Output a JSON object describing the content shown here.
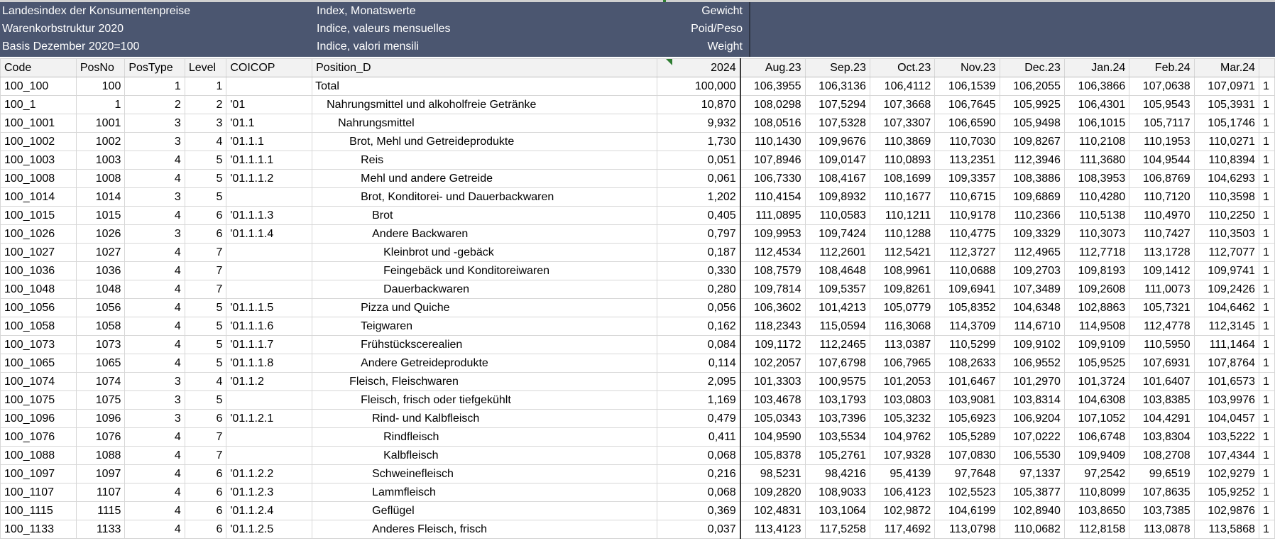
{
  "header": {
    "left": [
      "Landesindex der Konsumentenpreise",
      "Warenkorbstruktur 2020",
      "Basis Dezember 2020=100"
    ],
    "middle": [
      "Index, Monatswerte",
      "Indice, valeurs mensuelles",
      "Indice, valori mensili"
    ],
    "weight": [
      "Gewicht",
      "Poid/Peso",
      "Weight"
    ]
  },
  "columns": {
    "code": "Code",
    "posno": "PosNo",
    "postype": "PosType",
    "level": "Level",
    "coicop": "COICOP",
    "position": "Position_D",
    "weight_year": "2024",
    "months": [
      "Aug.23",
      "Sep.23",
      "Oct.23",
      "Nov.23",
      "Dec.23",
      "Jan.24",
      "Feb.24",
      "Mar.24"
    ]
  },
  "rows": [
    {
      "code": "100_100",
      "posno": "100",
      "postype": "1",
      "level": "1",
      "coicop": "",
      "position": "Total",
      "weight": "100,000",
      "values": [
        "106,3955",
        "106,3136",
        "106,4112",
        "106,1539",
        "106,2055",
        "106,3866",
        "107,0638",
        "107,0971"
      ],
      "trail": "1"
    },
    {
      "code": "100_1",
      "posno": "1",
      "postype": "2",
      "level": "2",
      "coicop": "'01",
      "position": "Nahrungsmittel und alkoholfreie Getränke",
      "weight": "10,870",
      "values": [
        "108,0298",
        "107,5294",
        "107,3668",
        "106,7645",
        "105,9925",
        "106,4301",
        "105,9543",
        "105,3931"
      ],
      "trail": "1"
    },
    {
      "code": "100_1001",
      "posno": "1001",
      "postype": "3",
      "level": "3",
      "coicop": "'01.1",
      "position": "Nahrungsmittel",
      "weight": "9,932",
      "values": [
        "108,0516",
        "107,5328",
        "107,3307",
        "106,6590",
        "105,9498",
        "106,1015",
        "105,7117",
        "105,1746"
      ],
      "trail": "1"
    },
    {
      "code": "100_1002",
      "posno": "1002",
      "postype": "3",
      "level": "4",
      "coicop": "'01.1.1",
      "position": "Brot, Mehl und Getreideprodukte",
      "weight": "1,730",
      "values": [
        "110,1430",
        "109,9676",
        "110,3869",
        "110,7030",
        "109,8267",
        "110,2108",
        "110,1953",
        "110,0271"
      ],
      "trail": "1"
    },
    {
      "code": "100_1003",
      "posno": "1003",
      "postype": "4",
      "level": "5",
      "coicop": "'01.1.1.1",
      "position": "Reis",
      "weight": "0,051",
      "values": [
        "107,8946",
        "109,0147",
        "110,0893",
        "113,2351",
        "112,3946",
        "111,3680",
        "104,9544",
        "110,8394"
      ],
      "trail": "1"
    },
    {
      "code": "100_1008",
      "posno": "1008",
      "postype": "4",
      "level": "5",
      "coicop": "'01.1.1.2",
      "position": "Mehl und andere Getreide",
      "weight": "0,061",
      "values": [
        "106,7330",
        "108,4167",
        "108,1699",
        "109,3357",
        "108,3886",
        "108,3953",
        "106,8769",
        "104,6293"
      ],
      "trail": "1"
    },
    {
      "code": "100_1014",
      "posno": "1014",
      "postype": "3",
      "level": "5",
      "coicop": "",
      "position": "Brot, Konditorei- und Dauerbackwaren",
      "weight": "1,202",
      "values": [
        "110,4154",
        "109,8932",
        "110,1677",
        "110,6715",
        "109,6869",
        "110,4280",
        "110,7120",
        "110,3598"
      ],
      "trail": "1"
    },
    {
      "code": "100_1015",
      "posno": "1015",
      "postype": "4",
      "level": "6",
      "coicop": "'01.1.1.3",
      "position": "Brot",
      "weight": "0,405",
      "values": [
        "111,0895",
        "110,0583",
        "110,1211",
        "110,9178",
        "110,2366",
        "110,5138",
        "110,4970",
        "110,2250"
      ],
      "trail": "1"
    },
    {
      "code": "100_1026",
      "posno": "1026",
      "postype": "3",
      "level": "6",
      "coicop": "'01.1.1.4",
      "position": "Andere Backwaren",
      "weight": "0,797",
      "values": [
        "109,9953",
        "109,7424",
        "110,1288",
        "110,4775",
        "109,3329",
        "110,3073",
        "110,7427",
        "110,3503"
      ],
      "trail": "1"
    },
    {
      "code": "100_1027",
      "posno": "1027",
      "postype": "4",
      "level": "7",
      "coicop": "",
      "position": "Kleinbrot und -gebäck",
      "weight": "0,187",
      "values": [
        "112,4534",
        "112,2601",
        "112,5421",
        "112,3727",
        "112,4965",
        "112,7718",
        "113,1728",
        "112,7077"
      ],
      "trail": "1"
    },
    {
      "code": "100_1036",
      "posno": "1036",
      "postype": "4",
      "level": "7",
      "coicop": "",
      "position": "Feingebäck und Konditoreiwaren",
      "weight": "0,330",
      "values": [
        "108,7579",
        "108,4648",
        "108,9961",
        "110,0688",
        "109,2703",
        "109,8193",
        "109,1412",
        "109,9741"
      ],
      "trail": "1"
    },
    {
      "code": "100_1048",
      "posno": "1048",
      "postype": "4",
      "level": "7",
      "coicop": "",
      "position": "Dauerbackwaren",
      "weight": "0,280",
      "values": [
        "109,7814",
        "109,5357",
        "109,8261",
        "109,6941",
        "107,3489",
        "109,2608",
        "111,0073",
        "109,2426"
      ],
      "trail": "1"
    },
    {
      "code": "100_1056",
      "posno": "1056",
      "postype": "4",
      "level": "5",
      "coicop": "'01.1.1.5",
      "position": "Pizza und Quiche",
      "weight": "0,056",
      "values": [
        "106,3602",
        "101,4213",
        "105,0779",
        "105,8352",
        "104,6348",
        "102,8863",
        "105,7321",
        "104,6462"
      ],
      "trail": "1"
    },
    {
      "code": "100_1058",
      "posno": "1058",
      "postype": "4",
      "level": "5",
      "coicop": "'01.1.1.6",
      "position": "Teigwaren",
      "weight": "0,162",
      "values": [
        "118,2343",
        "115,0594",
        "116,3068",
        "114,3709",
        "114,6710",
        "114,9508",
        "112,4778",
        "112,3145"
      ],
      "trail": "1"
    },
    {
      "code": "100_1073",
      "posno": "1073",
      "postype": "4",
      "level": "5",
      "coicop": "'01.1.1.7",
      "position": "Frühstückscerealien",
      "weight": "0,084",
      "values": [
        "109,1172",
        "112,2465",
        "113,0387",
        "110,5299",
        "109,9102",
        "109,9109",
        "110,5950",
        "111,1464"
      ],
      "trail": "1"
    },
    {
      "code": "100_1065",
      "posno": "1065",
      "postype": "4",
      "level": "5",
      "coicop": "'01.1.1.8",
      "position": "Andere Getreideprodukte",
      "weight": "0,114",
      "values": [
        "102,2057",
        "107,6798",
        "106,7965",
        "108,2633",
        "106,9552",
        "105,9525",
        "107,6931",
        "107,8764"
      ],
      "trail": "1"
    },
    {
      "code": "100_1074",
      "posno": "1074",
      "postype": "3",
      "level": "4",
      "coicop": "'01.1.2",
      "position": "Fleisch, Fleischwaren",
      "weight": "2,095",
      "values": [
        "101,3303",
        "100,9575",
        "101,2053",
        "101,6467",
        "101,2970",
        "101,3724",
        "101,6407",
        "101,6573"
      ],
      "trail": "1"
    },
    {
      "code": "100_1075",
      "posno": "1075",
      "postype": "3",
      "level": "5",
      "coicop": "",
      "position": "Fleisch, frisch oder tiefgekühlt",
      "weight": "1,169",
      "values": [
        "103,4678",
        "103,1793",
        "103,0803",
        "103,9081",
        "103,8314",
        "104,6308",
        "103,8385",
        "103,9976"
      ],
      "trail": "1"
    },
    {
      "code": "100_1096",
      "posno": "1096",
      "postype": "3",
      "level": "6",
      "coicop": "'01.1.2.1",
      "position": "Rind- und Kalbfleisch",
      "weight": "0,479",
      "values": [
        "105,0343",
        "103,7396",
        "105,3232",
        "105,6923",
        "106,9204",
        "107,1052",
        "104,4291",
        "104,0457"
      ],
      "trail": "1"
    },
    {
      "code": "100_1076",
      "posno": "1076",
      "postype": "4",
      "level": "7",
      "coicop": "",
      "position": "Rindfleisch",
      "weight": "0,411",
      "values": [
        "104,9590",
        "103,5534",
        "104,9762",
        "105,5289",
        "107,0222",
        "106,6748",
        "103,8304",
        "103,5222"
      ],
      "trail": "1"
    },
    {
      "code": "100_1088",
      "posno": "1088",
      "postype": "4",
      "level": "7",
      "coicop": "",
      "position": "Kalbfleisch",
      "weight": "0,068",
      "values": [
        "105,8378",
        "105,2761",
        "107,9328",
        "107,0830",
        "106,5530",
        "109,9409",
        "108,2708",
        "107,4344"
      ],
      "trail": "1"
    },
    {
      "code": "100_1097",
      "posno": "1097",
      "postype": "4",
      "level": "6",
      "coicop": "'01.1.2.2",
      "position": "Schweinefleisch",
      "weight": "0,216",
      "values": [
        "98,5231",
        "98,4216",
        "95,4139",
        "97,7648",
        "97,1337",
        "97,2542",
        "99,6519",
        "102,9279"
      ],
      "trail": "1"
    },
    {
      "code": "100_1107",
      "posno": "1107",
      "postype": "4",
      "level": "6",
      "coicop": "'01.1.2.3",
      "position": "Lammfleisch",
      "weight": "0,068",
      "values": [
        "109,2820",
        "108,9033",
        "106,4123",
        "102,5523",
        "105,3877",
        "110,8099",
        "107,8635",
        "105,9252"
      ],
      "trail": "1"
    },
    {
      "code": "100_1115",
      "posno": "1115",
      "postype": "4",
      "level": "6",
      "coicop": "'01.1.2.4",
      "position": "Geflügel",
      "weight": "0,369",
      "values": [
        "102,4831",
        "103,1064",
        "102,9872",
        "104,6199",
        "102,8940",
        "103,8650",
        "103,7385",
        "102,9876"
      ],
      "trail": "1"
    },
    {
      "code": "100_1133",
      "posno": "1133",
      "postype": "4",
      "level": "6",
      "coicop": "'01.1.2.5",
      "position": "Anderes Fleisch, frisch",
      "weight": "0,037",
      "values": [
        "113,4123",
        "117,5258",
        "117,4692",
        "113,0798",
        "110,0682",
        "112,8158",
        "113,0878",
        "113,5868"
      ],
      "trail": "1"
    }
  ]
}
